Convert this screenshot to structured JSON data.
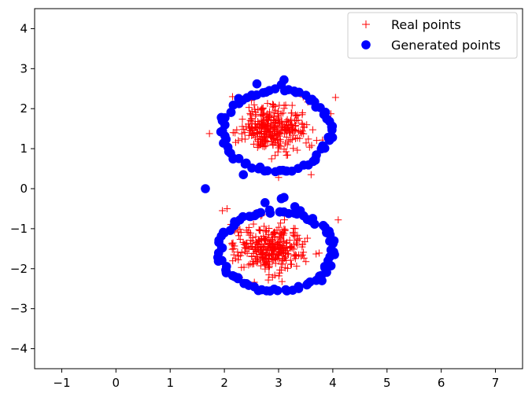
{
  "chart_data": {
    "type": "scatter",
    "xlim": [
      -1.5,
      7.5
    ],
    "ylim": [
      -4.5,
      4.5
    ],
    "xticks": [
      -1,
      0,
      1,
      2,
      3,
      4,
      5,
      6,
      7
    ],
    "yticks": [
      -4,
      -3,
      -2,
      -1,
      0,
      1,
      2,
      3,
      4
    ],
    "xtick_labels": [
      "−1",
      "0",
      "1",
      "2",
      "3",
      "4",
      "5",
      "6",
      "7"
    ],
    "ytick_labels": [
      "−4",
      "−3",
      "−2",
      "−1",
      "0",
      "1",
      "2",
      "3",
      "4"
    ],
    "grid": false,
    "legend_position": "top-right",
    "series": [
      {
        "name": "Real points",
        "marker": "plus",
        "color": "#ff0000",
        "clusters": [
          {
            "center": [
              2.9,
              1.5
            ],
            "spread": [
              0.3,
              0.3
            ],
            "count": 320
          },
          {
            "center": [
              2.85,
              -1.5
            ],
            "spread": [
              0.3,
              0.3
            ],
            "count": 320
          }
        ],
        "values": [
          [
            4.05,
            2.28
          ],
          [
            2.05,
            -0.5
          ],
          [
            2.55,
            -0.62
          ],
          [
            4.1,
            -0.78
          ],
          [
            3.0,
            0.28
          ],
          [
            3.6,
            0.35
          ],
          [
            2.15,
            2.3
          ]
        ]
      },
      {
        "name": "Generated points",
        "marker": "circle",
        "color": "#0000ff",
        "rings": [
          {
            "center": [
              2.95,
              1.45
            ],
            "radius": [
              1.0,
              1.0
            ],
            "count": 72
          },
          {
            "center": [
              2.95,
              -1.55
            ],
            "radius": [
              1.05,
              1.0
            ],
            "count": 80
          }
        ],
        "values": [
          [
            1.65,
            0.0
          ],
          [
            2.6,
            2.62
          ],
          [
            3.05,
            2.6
          ],
          [
            3.1,
            2.72
          ],
          [
            3.15,
            0.44
          ],
          [
            3.1,
            -0.22
          ],
          [
            3.05,
            -0.25
          ],
          [
            2.75,
            -0.35
          ],
          [
            3.3,
            -0.45
          ],
          [
            3.4,
            -0.55
          ],
          [
            2.35,
            0.35
          ],
          [
            2.25,
            -2.25
          ],
          [
            3.8,
            -2.3
          ]
        ]
      }
    ]
  }
}
